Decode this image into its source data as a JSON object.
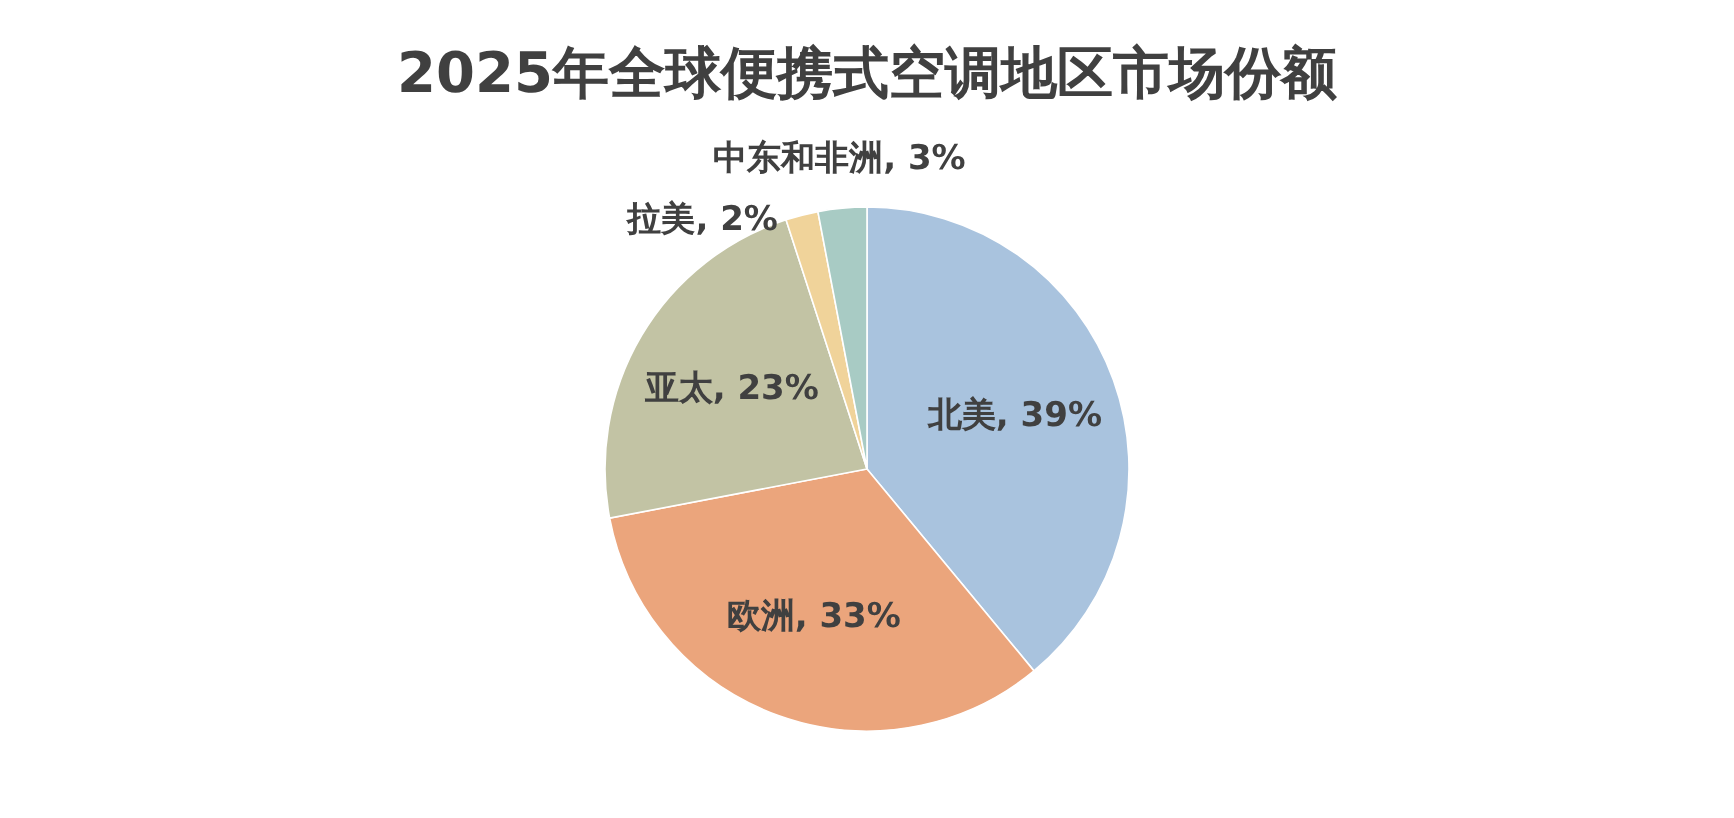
{
  "chart_data": {
    "type": "pie",
    "title": "2025年全球便携式空调地区市场份额",
    "categories": [
      "北美",
      "欧洲",
      "亚太",
      "拉美",
      "中东和非洲"
    ],
    "values": [
      39,
      33,
      23,
      2,
      3
    ],
    "colors": [
      "#a9c3de",
      "#eba57c",
      "#c2c3a4",
      "#f0d39a",
      "#a8cbc4"
    ],
    "value_labels": [
      "39%",
      "33%",
      "23%",
      "2%",
      "3%"
    ],
    "legend": false
  }
}
